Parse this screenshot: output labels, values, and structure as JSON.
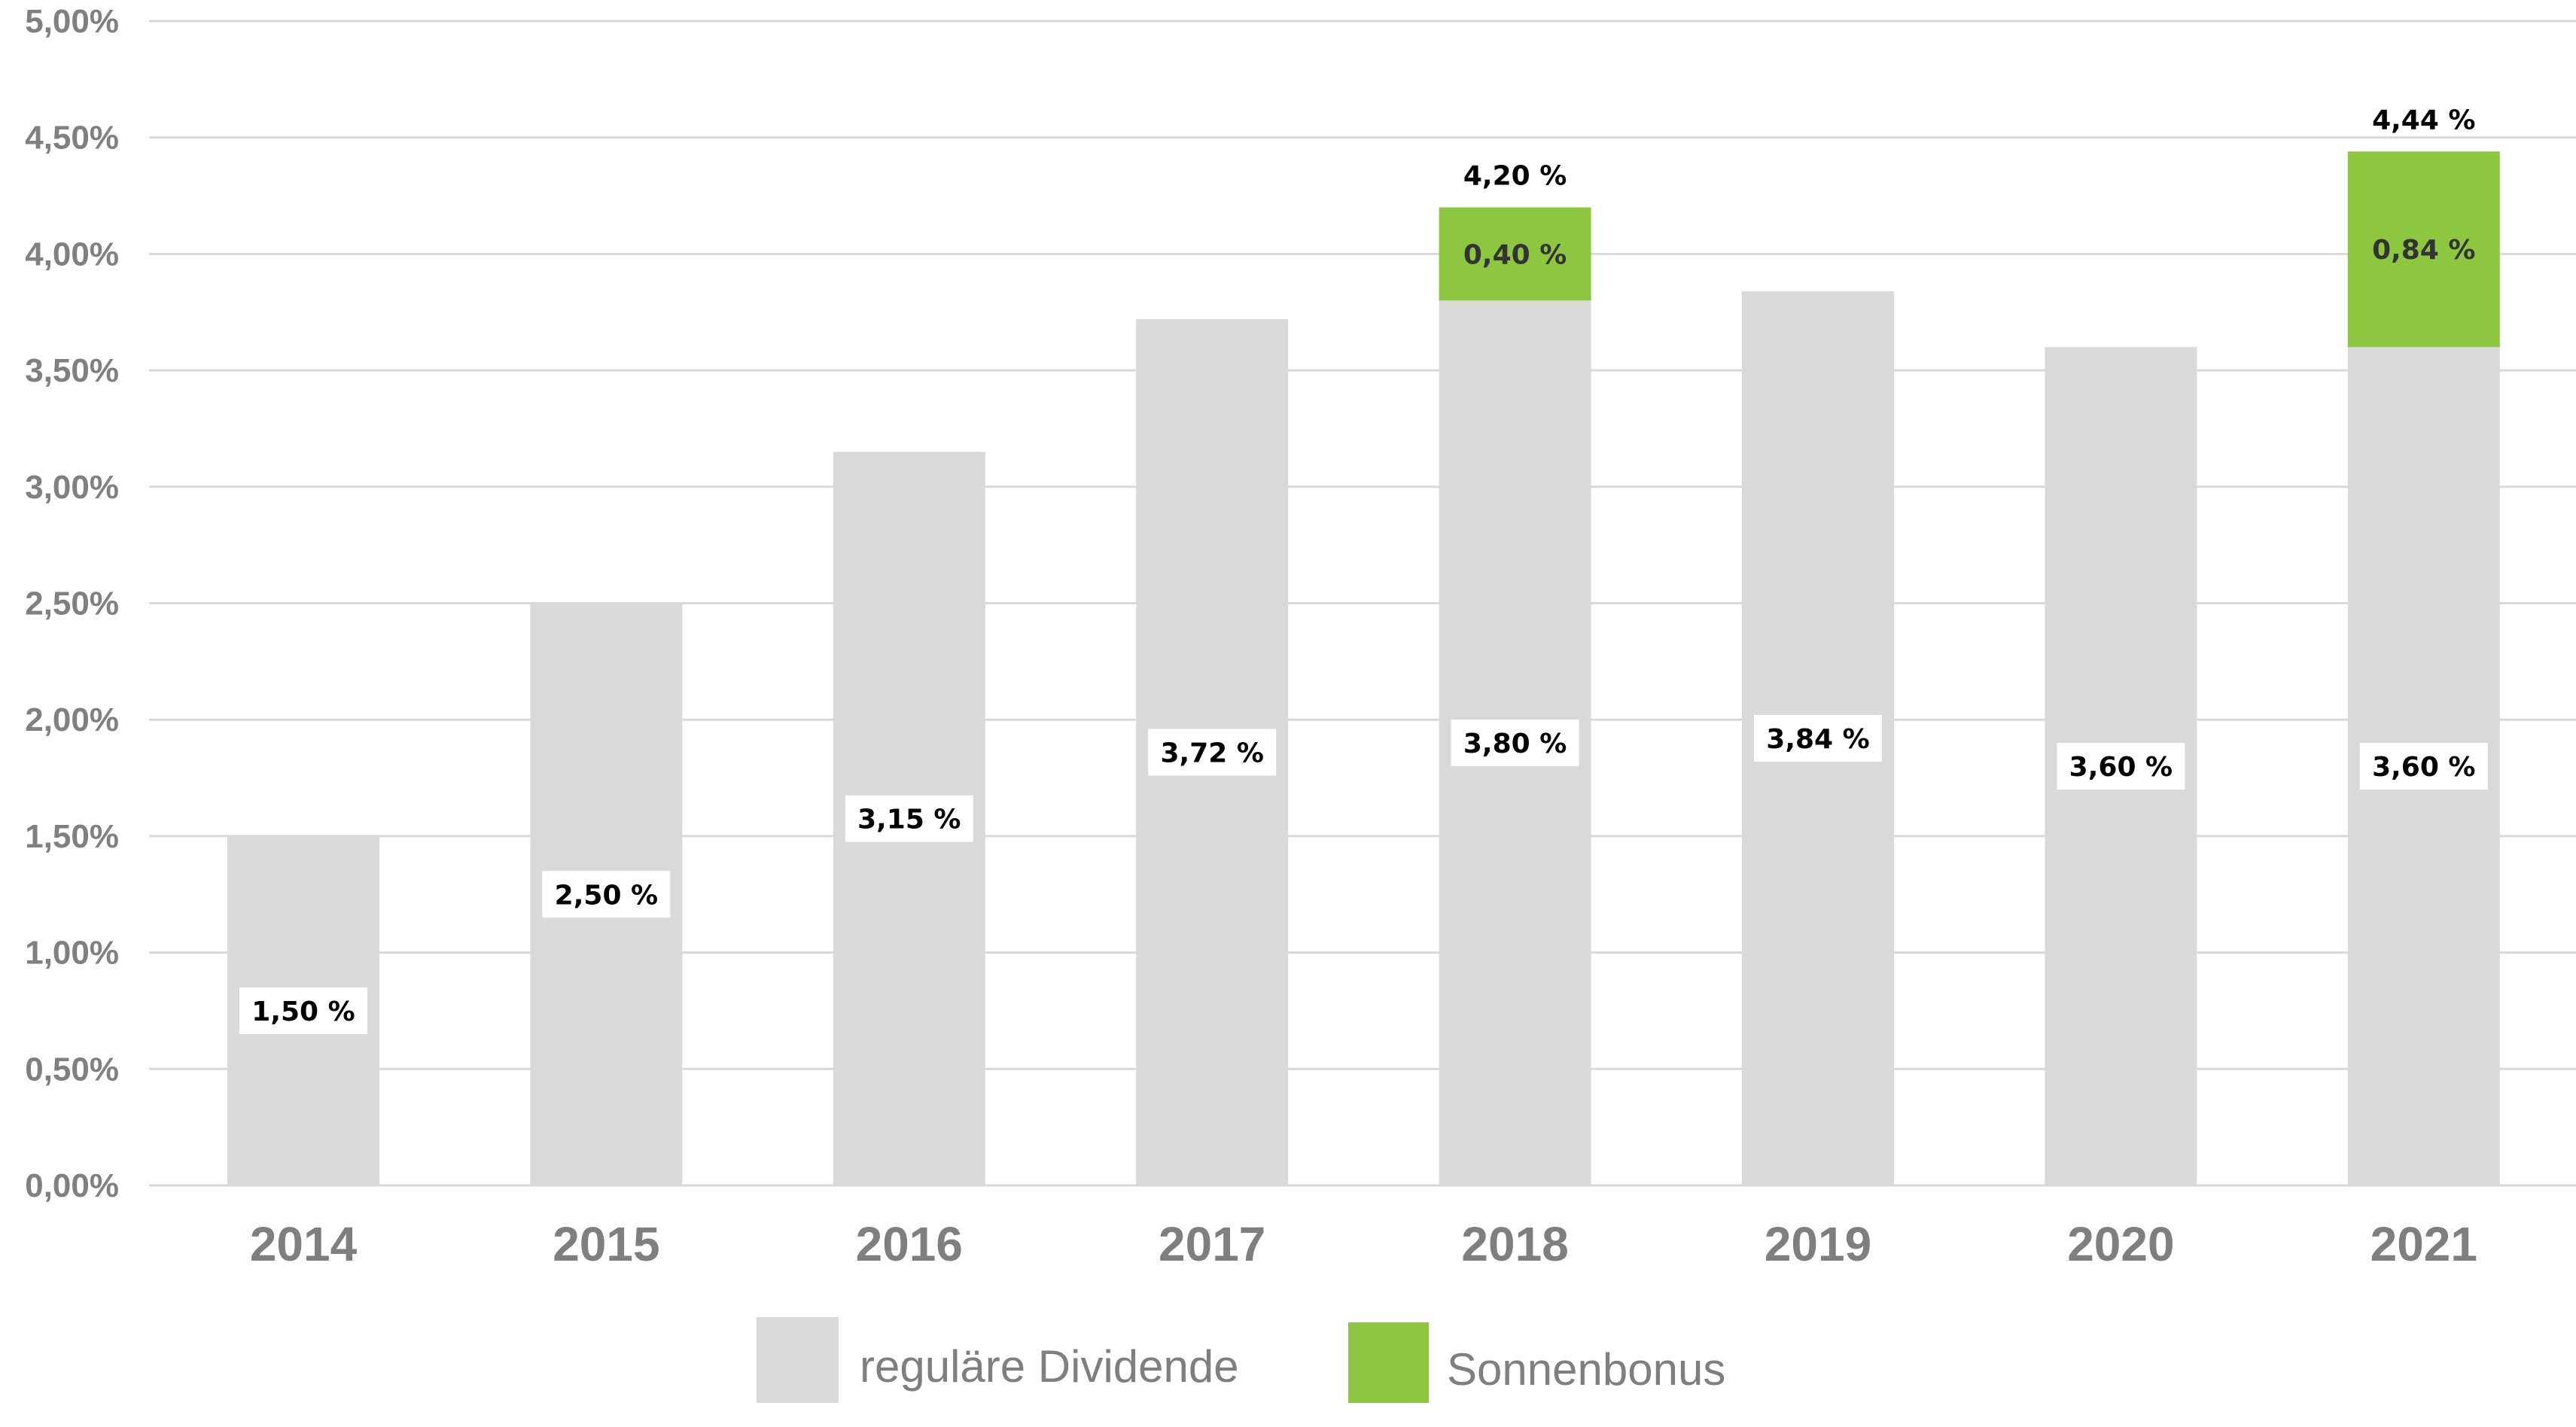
{
  "chart_data": {
    "type": "bar",
    "stacked": true,
    "categories": [
      "2014",
      "2015",
      "2016",
      "2017",
      "2018",
      "2019",
      "2020",
      "2021"
    ],
    "series": [
      {
        "name": "reguläre Dividende",
        "color": "#d9d9d9",
        "values": [
          1.5,
          2.5,
          3.15,
          3.72,
          3.8,
          3.84,
          3.6,
          3.6
        ],
        "labels": [
          "1,50 %",
          "2,50 %",
          "3,15 %",
          "3,72 %",
          "3,80 %",
          "3,84 %",
          "3,60 %",
          "3,60 %"
        ]
      },
      {
        "name": "Sonnenbonus",
        "color": "#8dc63f",
        "values": [
          0,
          0,
          0,
          0,
          0.4,
          0,
          0,
          0.84
        ],
        "labels": [
          "",
          "",
          "",
          "",
          "0,40 %",
          "",
          "",
          "0,84 %"
        ]
      }
    ],
    "totals": {
      "values": [
        null,
        null,
        null,
        null,
        4.2,
        null,
        null,
        4.44
      ],
      "labels": [
        "",
        "",
        "",
        "",
        "4,20 %",
        "",
        "",
        "4,44 %"
      ]
    },
    "ylim": [
      0,
      5
    ],
    "yticks": [
      0,
      0.5,
      1,
      1.5,
      2,
      2.5,
      3,
      3.5,
      4,
      4.5,
      5
    ],
    "ytick_labels": [
      "0,00%",
      "0,50%",
      "1,00%",
      "1,50%",
      "2,00%",
      "2,50%",
      "3,00%",
      "3,50%",
      "4,00%",
      "4,50%",
      "5,00%"
    ],
    "grid": true,
    "legend_position": "bottom",
    "title": "",
    "xlabel": "",
    "ylabel": ""
  }
}
